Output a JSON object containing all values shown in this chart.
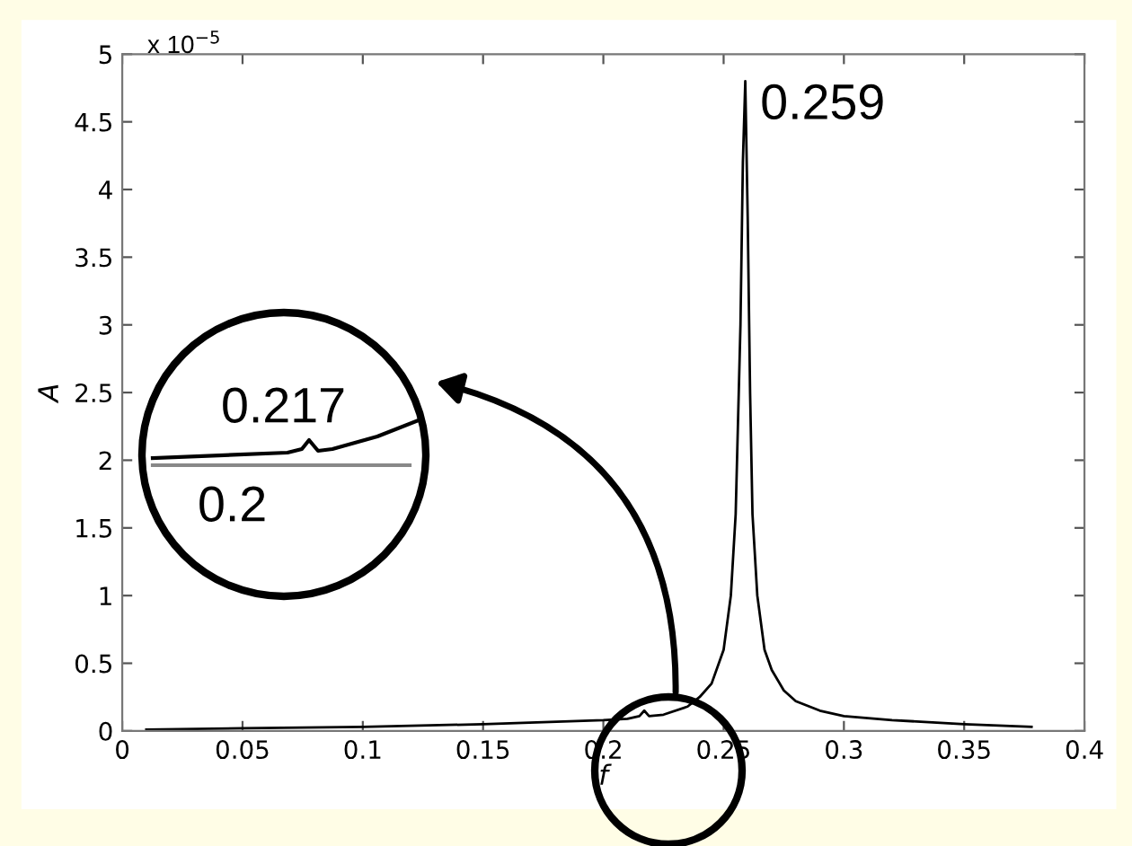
{
  "chart_data": {
    "type": "line",
    "xlabel": "f",
    "ylabel": "A",
    "xlim": [
      0,
      0.4
    ],
    "xticks": [
      0,
      0.05,
      0.1,
      0.15,
      0.2,
      0.25,
      0.3,
      0.35,
      0.4
    ],
    "ylim": [
      0,
      5
    ],
    "yticks": [
      0,
      0.5,
      1,
      1.5,
      2,
      2.5,
      3,
      3.5,
      4,
      4.5,
      5
    ],
    "grid": false,
    "legend": false,
    "marker": "none",
    "line_style": "solid",
    "series": [
      {
        "color": "#000000",
        "x": [
          0.01,
          0.05,
          0.1,
          0.15,
          0.2,
          0.21,
          0.215,
          0.217,
          0.219,
          0.225,
          0.235,
          0.24,
          0.245,
          0.25,
          0.253,
          0.255,
          0.257,
          0.258,
          0.259,
          0.26,
          0.261,
          0.262,
          0.264,
          0.267,
          0.27,
          0.275,
          0.28,
          0.29,
          0.3,
          0.32,
          0.35,
          0.378
        ],
        "values": [
          0.01,
          0.02,
          0.03,
          0.05,
          0.08,
          0.09,
          0.11,
          0.15,
          0.11,
          0.12,
          0.18,
          0.25,
          0.35,
          0.6,
          1.0,
          1.6,
          3.0,
          4.2,
          4.8,
          3.8,
          2.5,
          1.6,
          1.0,
          0.6,
          0.45,
          0.3,
          0.22,
          0.15,
          0.11,
          0.08,
          0.05,
          0.03
        ]
      }
    ],
    "annotations": [
      "x 10$^{−5}$",
      {
        "text": "0.259",
        "x": 0.259,
        "y": 4.8
      },
      "0.217",
      "0.2"
    ]
  }
}
